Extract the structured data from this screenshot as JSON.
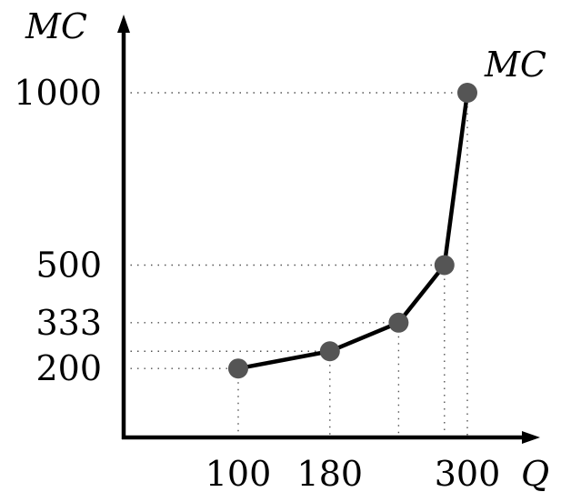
{
  "chart_data": {
    "type": "line",
    "xlabel": "Q",
    "ylabel": "MC",
    "series": [
      {
        "name": "MC",
        "points": [
          {
            "x": 100,
            "y": 200
          },
          {
            "x": 180,
            "y": 250
          },
          {
            "x": 240,
            "y": 333
          },
          {
            "x": 280,
            "y": 500
          },
          {
            "x": 300,
            "y": 1000
          }
        ]
      }
    ],
    "x_ticks": [
      {
        "value": 100,
        "label": "100"
      },
      {
        "value": 180,
        "label": "180"
      },
      {
        "value": 300,
        "label": "300"
      }
    ],
    "y_ticks": [
      {
        "value": 1000,
        "label": "1000"
      },
      {
        "value": 500,
        "label": "500"
      },
      {
        "value": 333,
        "label": "333"
      },
      {
        "value": 200,
        "label": "200"
      }
    ],
    "xlim": [
      0,
      380
    ],
    "ylim": [
      0,
      1250
    ],
    "grid": false,
    "colors": {
      "line": "#000000",
      "marker": "#555555",
      "guide": "#555555"
    }
  }
}
